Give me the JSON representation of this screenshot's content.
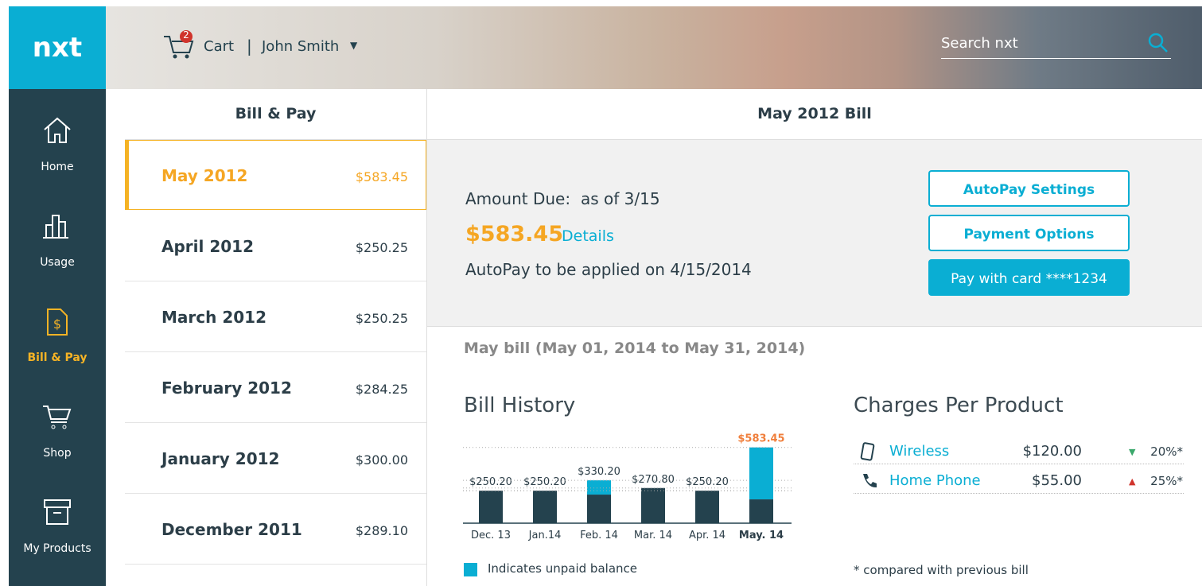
{
  "sidebar": {
    "logo": "nxt",
    "items": [
      "Home",
      "Usage",
      "Bill & Pay",
      "Shop",
      "My Products"
    ],
    "active": 2
  },
  "header": {
    "cart_count": 2,
    "cart": "Cart",
    "user": "John Smith",
    "search_placeholder": "Search nxt"
  },
  "bill_list": {
    "title": "Bill & Pay",
    "active": 0,
    "rows": [
      [
        "May 2012",
        "$583.45"
      ],
      [
        "April 2012",
        "$250.25"
      ],
      [
        "March 2012",
        "$250.25"
      ],
      [
        "February 2012",
        "$284.25"
      ],
      [
        "January 2012",
        "$300.00"
      ],
      [
        "December 2011",
        "$289.10"
      ]
    ]
  },
  "bill": {
    "title": "May 2012 Bill",
    "amount_due": "Amount Due:",
    "as_of": "as of 3/15",
    "amount": "$583.45",
    "details": "Details",
    "autopay_note": "AutoPay to be applied on 4/15/2014",
    "buttons": [
      "AutoPay Settings",
      "Payment Options",
      "Pay with card ****1234"
    ],
    "period": "May bill (May 01, 2014 to May 31, 2014)"
  },
  "chart_data": {
    "type": "bar",
    "title": "Bill History",
    "categories": [
      "Dec. 13",
      "Jan.14",
      "Feb. 14",
      "Mar. 14",
      "Apr. 14",
      "May. 14"
    ],
    "values": [
      250.2,
      250.2,
      330.2,
      270.8,
      250.2,
      583.45
    ],
    "value_labels": [
      "$250.20",
      "$250.20",
      "$330.20",
      "$270.80",
      "$250.20",
      "$583.45"
    ],
    "series": [
      {
        "color": "#24424e",
        "values": [
          250.2,
          250.2,
          220.2,
          270.8,
          250.2,
          183.45
        ]
      },
      {
        "name": "Indicates unpaid balance",
        "color": "#0aaed3",
        "values": [
          0,
          0,
          110,
          0,
          0,
          400
        ]
      }
    ],
    "ylim": [
      0,
      600
    ],
    "highlight": 5
  },
  "charges": {
    "title": "Charges Per Product",
    "rows": [
      {
        "product": "Wireless",
        "amount": "$120.00",
        "change": "20%*",
        "direction": "down"
      },
      {
        "product": "Home Phone",
        "amount": "$55.00",
        "change": "25%*",
        "direction": "up"
      }
    ],
    "footnote": "* compared with previous bill"
  }
}
